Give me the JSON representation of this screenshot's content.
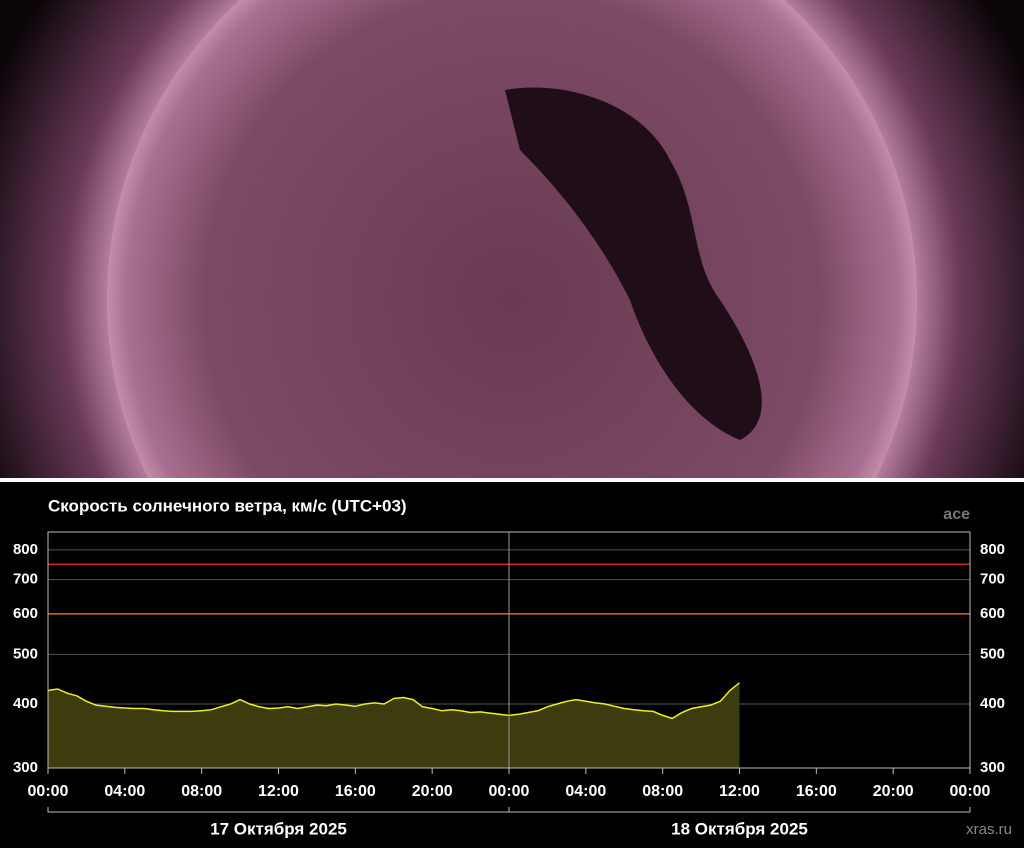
{
  "chart_data": {
    "type": "area",
    "title": "Скорость солнечного ветра, км/с (UTC+03)",
    "source": "ace",
    "watermark": "xras.ru",
    "x": [
      0,
      0.5,
      1,
      1.5,
      2,
      2.5,
      3,
      3.5,
      4,
      4.5,
      5,
      5.5,
      6,
      6.5,
      7,
      7.5,
      8,
      8.5,
      9,
      9.5,
      10,
      10.5,
      11,
      11.5,
      12,
      12.5,
      13,
      13.5,
      14,
      14.5,
      15,
      15.5,
      16,
      16.5,
      17,
      17.5,
      18,
      18.5,
      19,
      19.5,
      20,
      20.5,
      21,
      21.5,
      22,
      22.5,
      23,
      23.5,
      24,
      24.5,
      25,
      25.5,
      26,
      26.5,
      27,
      27.5,
      28,
      28.5,
      29,
      29.5,
      30,
      30.5,
      31,
      31.5,
      32,
      32.5,
      33,
      33.5,
      34,
      34.5,
      35,
      35.5,
      36
    ],
    "values": [
      425,
      428,
      420,
      415,
      405,
      398,
      396,
      394,
      393,
      392,
      392,
      390,
      388,
      387,
      387,
      387,
      388,
      390,
      395,
      400,
      408,
      400,
      395,
      392,
      393,
      395,
      392,
      395,
      398,
      397,
      400,
      398,
      396,
      400,
      402,
      400,
      410,
      412,
      408,
      395,
      392,
      388,
      390,
      388,
      385,
      386,
      384,
      382,
      380,
      382,
      385,
      388,
      395,
      400,
      405,
      408,
      405,
      402,
      400,
      396,
      392,
      390,
      388,
      387,
      380,
      375,
      385,
      392,
      395,
      398,
      405,
      425,
      440
    ],
    "color": "#f0f020",
    "fill": "#3c3c0e",
    "log_y": true,
    "ylim": [
      300,
      867
    ],
    "yticks": [
      300,
      400,
      500,
      600,
      700,
      800
    ],
    "xlim": [
      0,
      48
    ],
    "xticks": [
      {
        "value": 0,
        "label": "00:00"
      },
      {
        "value": 4,
        "label": "04:00"
      },
      {
        "value": 8,
        "label": "08:00"
      },
      {
        "value": 12,
        "label": "12:00"
      },
      {
        "value": 16,
        "label": "16:00"
      },
      {
        "value": 20,
        "label": "20:00"
      },
      {
        "value": 24,
        "label": "00:00"
      },
      {
        "value": 28,
        "label": "04:00"
      },
      {
        "value": 32,
        "label": "08:00"
      },
      {
        "value": 36,
        "label": "12:00"
      },
      {
        "value": 40,
        "label": "16:00"
      },
      {
        "value": 44,
        "label": "20:00"
      },
      {
        "value": 48,
        "label": "00:00"
      }
    ],
    "grid": true,
    "reference_lines": [
      {
        "value": 750,
        "color": "#d42020"
      },
      {
        "value": 600,
        "color": "#e0661e"
      }
    ],
    "vlines": [
      24
    ],
    "days": [
      {
        "label": "17 Октября 2025",
        "start": 0,
        "end": 24
      },
      {
        "label": "18 Октября 2025",
        "start": 24,
        "end": 48
      }
    ]
  }
}
